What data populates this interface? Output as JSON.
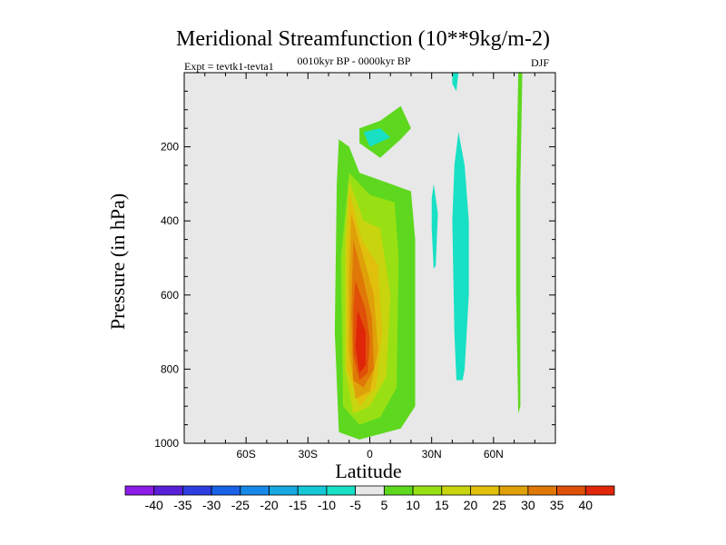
{
  "chart_data": {
    "type": "contour",
    "title": "Meridional Streamfunction (10**9kg/m-2)",
    "subtitle_left": "Expt = tevtk1-tevta1",
    "subtitle_center": "0010kyr BP - 0000kyr BP",
    "subtitle_right": "DJF",
    "xlabel": "Latitude",
    "ylabel": "Pressure (in hPa)",
    "xlim": [
      -90,
      90
    ],
    "ylim": [
      1000,
      0
    ],
    "x_ticks": [
      {
        "value": -60,
        "label": "60S"
      },
      {
        "value": -30,
        "label": "30S"
      },
      {
        "value": 0,
        "label": "0"
      },
      {
        "value": 30,
        "label": "30N"
      },
      {
        "value": 60,
        "label": "60N"
      }
    ],
    "y_ticks": [
      {
        "value": 200,
        "label": "200"
      },
      {
        "value": 400,
        "label": "400"
      },
      {
        "value": 600,
        "label": "600"
      },
      {
        "value": 800,
        "label": "800"
      },
      {
        "value": 1000,
        "label": "1000"
      }
    ],
    "colorbar": {
      "levels": [
        "-40",
        "-35",
        "-30",
        "-25",
        "-20",
        "-15",
        "-10",
        "-5",
        "5",
        "10",
        "15",
        "20",
        "25",
        "30",
        "35",
        "40"
      ],
      "colors": [
        "#8c1ce6",
        "#5a20d8",
        "#2d3ee0",
        "#1a62e8",
        "#1689e8",
        "#16a9e0",
        "#14c8d6",
        "#18e0c4",
        "#e8e8e8",
        "#5ed81e",
        "#98e014",
        "#c8d40e",
        "#e0c00c",
        "#e0a00a",
        "#e07808",
        "#e05008",
        "#e02608"
      ]
    },
    "regions": [
      {
        "name": "hadley-positive",
        "level": 5,
        "points": [
          [
            -15,
            180
          ],
          [
            -10,
            200
          ],
          [
            -5,
            270
          ],
          [
            10,
            300
          ],
          [
            20,
            320
          ],
          [
            22,
            450
          ],
          [
            22,
            900
          ],
          [
            15,
            960
          ],
          [
            -5,
            990
          ],
          [
            -15,
            970
          ],
          [
            -17,
            700
          ],
          [
            -16,
            300
          ]
        ]
      },
      {
        "name": "hadley-positive",
        "level": 10,
        "points": [
          [
            -10,
            270
          ],
          [
            0,
            330
          ],
          [
            12,
            350
          ],
          [
            14,
            500
          ],
          [
            13,
            850
          ],
          [
            5,
            930
          ],
          [
            -5,
            950
          ],
          [
            -13,
            900
          ],
          [
            -14,
            500
          ]
        ]
      },
      {
        "name": "hadley-positive",
        "level": 15,
        "points": [
          [
            -10,
            290
          ],
          [
            -3,
            400
          ],
          [
            5,
            420
          ],
          [
            10,
            600
          ],
          [
            8,
            820
          ],
          [
            0,
            900
          ],
          [
            -8,
            920
          ],
          [
            -12,
            800
          ],
          [
            -12,
            450
          ]
        ]
      },
      {
        "name": "hadley-positive",
        "level": 20,
        "points": [
          [
            -10,
            320
          ],
          [
            -4,
            450
          ],
          [
            4,
            520
          ],
          [
            6,
            700
          ],
          [
            3,
            850
          ],
          [
            -5,
            900
          ],
          [
            -11,
            800
          ],
          [
            -11,
            500
          ]
        ]
      },
      {
        "name": "hadley-positive",
        "level": 25,
        "points": [
          [
            -9,
            380
          ],
          [
            -4,
            480
          ],
          [
            2,
            600
          ],
          [
            4,
            750
          ],
          [
            0,
            860
          ],
          [
            -7,
            880
          ],
          [
            -10,
            750
          ],
          [
            -10,
            550
          ]
        ]
      },
      {
        "name": "hadley-positive",
        "level": 30,
        "points": [
          [
            -8,
            450
          ],
          [
            -3,
            560
          ],
          [
            1,
            660
          ],
          [
            2,
            800
          ],
          [
            -3,
            850
          ],
          [
            -8,
            830
          ],
          [
            -9,
            650
          ]
        ]
      },
      {
        "name": "hadley-positive",
        "level": 35,
        "points": [
          [
            -7,
            560
          ],
          [
            -2,
            640
          ],
          [
            0,
            720
          ],
          [
            -1,
            810
          ],
          [
            -5,
            830
          ],
          [
            -8,
            760
          ],
          [
            -8,
            640
          ]
        ]
      },
      {
        "name": "hadley-positive",
        "level": 40,
        "points": [
          [
            -6,
            640
          ],
          [
            -2,
            700
          ],
          [
            -2,
            790
          ],
          [
            -5,
            810
          ],
          [
            -7,
            740
          ]
        ]
      },
      {
        "name": "upper-cell",
        "level": 5,
        "points": [
          [
            -5,
            150
          ],
          [
            5,
            130
          ],
          [
            15,
            90
          ],
          [
            20,
            150
          ],
          [
            15,
            180
          ],
          [
            5,
            230
          ],
          [
            -5,
            190
          ]
        ]
      },
      {
        "name": "upper-cell",
        "level": -5,
        "points": [
          [
            -3,
            160
          ],
          [
            5,
            150
          ],
          [
            10,
            175
          ],
          [
            0,
            200
          ]
        ]
      },
      {
        "name": "band-35n",
        "level": -5,
        "points": [
          [
            31,
            300
          ],
          [
            33,
            380
          ],
          [
            32,
            520
          ],
          [
            31,
            530
          ],
          [
            30,
            420
          ],
          [
            30,
            340
          ]
        ]
      },
      {
        "name": "band-45n",
        "level": -5,
        "points": [
          [
            40,
            0
          ],
          [
            43,
            0
          ],
          [
            42,
            50
          ],
          [
            40,
            30
          ]
        ]
      },
      {
        "name": "band-45n",
        "level": -5,
        "points": [
          [
            43,
            160
          ],
          [
            46,
            250
          ],
          [
            48,
            400
          ],
          [
            48,
            600
          ],
          [
            46,
            800
          ],
          [
            45,
            830
          ],
          [
            42,
            830
          ],
          [
            41,
            700
          ],
          [
            40,
            400
          ],
          [
            41,
            250
          ]
        ]
      },
      {
        "name": "band-70n",
        "level": 5,
        "points": [
          [
            72,
            0
          ],
          [
            74,
            0
          ],
          [
            73,
            300
          ],
          [
            73,
            600
          ],
          [
            73,
            900
          ],
          [
            72,
            920
          ],
          [
            71,
            600
          ],
          [
            71,
            300
          ]
        ]
      }
    ]
  }
}
